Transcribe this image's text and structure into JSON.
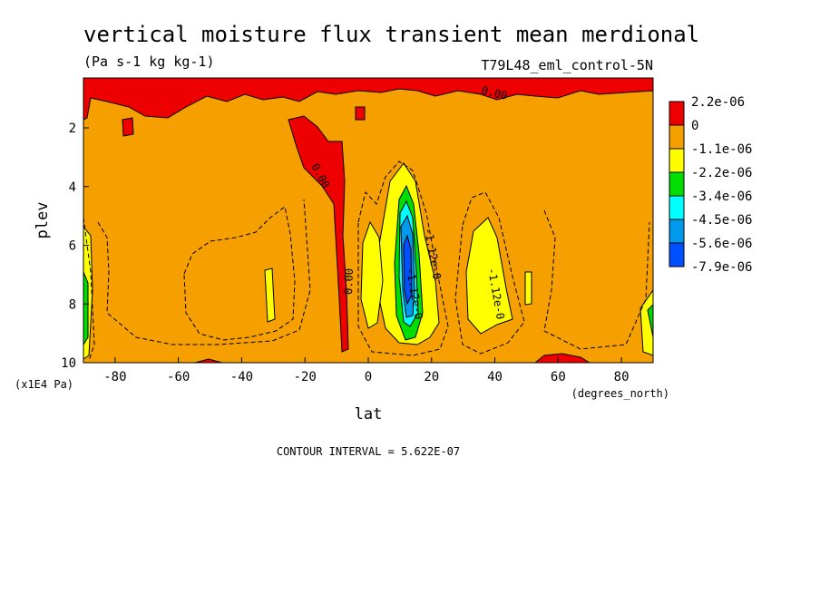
{
  "chart_data": {
    "type": "heatmap",
    "title": "vertical moisture flux transient mean merdional",
    "units": "(Pa s-1 kg kg-1)",
    "run_label": "T79L48_eml_control-5N",
    "xlabel": "lat",
    "x_units": "(degrees_north)",
    "ylabel": "plev",
    "y_units": "(x1E4 Pa)",
    "xlim": [
      -90,
      90
    ],
    "ylim": [
      10,
      0.3
    ],
    "x_ticks": [
      "-80",
      "-60",
      "-40",
      "-20",
      "0",
      "20",
      "40",
      "60",
      "80"
    ],
    "y_ticks": [
      "2",
      "4",
      "6",
      "8",
      "10"
    ],
    "contour_interval": "CONTOUR INTERVAL = 5.622E-07",
    "contour_labels": [
      "0.00",
      "0.00",
      "0.00",
      "-1.12e-0",
      "-1.12e-0",
      "-1.12e-0"
    ],
    "legend": {
      "labels": [
        "2.2e-06",
        "0",
        "-1.1e-06",
        "-2.2e-06",
        "-3.4e-06",
        "-4.5e-06",
        "-5.6e-06",
        "-7.9e-06"
      ],
      "colors": [
        "#ee0000",
        "#f5a000",
        "#ffff00",
        "#00dd00",
        "#00ffff",
        "#0099ee",
        "#0050ff"
      ]
    }
  }
}
